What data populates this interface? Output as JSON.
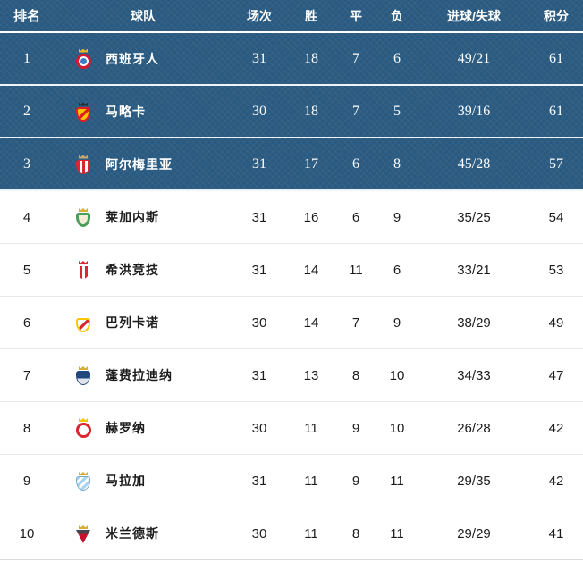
{
  "colors": {
    "highlight_bg": "#2a5a80",
    "divider_dark": "#eef3f7",
    "divider_light": "#e9e9e9",
    "text_dark": "#1c1c1c",
    "text_light": "#ffffff",
    "bottom_rule": "#dcdcdc"
  },
  "table": {
    "headers": {
      "rank": "排名",
      "team": "球队",
      "played": "场次",
      "win": "胜",
      "draw": "平",
      "loss": "负",
      "goals": "进球/失球",
      "points": "积分"
    },
    "rows": [
      {
        "rank": "1",
        "team": "西班牙人",
        "played": "31",
        "win": "18",
        "draw": "7",
        "loss": "6",
        "goals": "49/21",
        "points": "61",
        "highlighted": true,
        "crest": {
          "icon": "espanyol-crest-icon",
          "shape": "circle",
          "colors": [
            "#d6192e",
            "#3a7bc8"
          ],
          "crown": "#f0b429"
        }
      },
      {
        "rank": "2",
        "team": "马略卡",
        "played": "30",
        "win": "18",
        "draw": "7",
        "loss": "5",
        "goals": "39/16",
        "points": "61",
        "highlighted": true,
        "crest": {
          "icon": "mallorca-crest-icon",
          "shape": "diagonal",
          "colors": [
            "#f7c600",
            "#e31b23",
            "#e31b23"
          ],
          "crown": "#2b2b2b"
        }
      },
      {
        "rank": "3",
        "team": "阿尔梅里亚",
        "played": "31",
        "win": "17",
        "draw": "6",
        "loss": "8",
        "goals": "45/28",
        "points": "57",
        "highlighted": true,
        "crest": {
          "icon": "almeria-crest-icon",
          "shape": "stripes",
          "colors": [
            "#d8272f",
            "#ffffff"
          ],
          "crown": "#c9a66b"
        }
      },
      {
        "rank": "4",
        "team": "莱加内斯",
        "played": "31",
        "win": "16",
        "draw": "6",
        "loss": "9",
        "goals": "35/25",
        "points": "54",
        "highlighted": false,
        "crest": {
          "icon": "leganes-crest-icon",
          "shape": "wreath",
          "colors": [
            "#f3edd8",
            "#4a9e5c"
          ],
          "crown": "#d4af37"
        }
      },
      {
        "rank": "5",
        "team": "希洪竞技",
        "played": "31",
        "win": "14",
        "draw": "11",
        "loss": "6",
        "goals": "33/21",
        "points": "53",
        "highlighted": false,
        "crest": {
          "icon": "sporting-gijon-crest-icon",
          "shape": "stripes",
          "colors": [
            "#ffffff",
            "#d8272f"
          ],
          "crown": "#d8272f"
        }
      },
      {
        "rank": "6",
        "team": "巴列卡诺",
        "played": "30",
        "win": "14",
        "draw": "7",
        "loss": "9",
        "goals": "38/29",
        "points": "49",
        "highlighted": false,
        "crest": {
          "icon": "rayo-vallecano-crest-icon",
          "shape": "diagonal",
          "colors": [
            "#ffffff",
            "#d8272f",
            "#f7c600"
          ],
          "crown": null
        }
      },
      {
        "rank": "7",
        "team": "蓬费拉迪纳",
        "played": "31",
        "win": "13",
        "draw": "8",
        "loss": "10",
        "goals": "34/33",
        "points": "47",
        "highlighted": false,
        "crest": {
          "icon": "ponferradina-crest-icon",
          "shape": "split",
          "colors": [
            "#23467c",
            "#dfe4ec"
          ],
          "crown": "#d4af37"
        }
      },
      {
        "rank": "8",
        "team": "赫罗纳",
        "played": "30",
        "win": "11",
        "draw": "9",
        "loss": "10",
        "goals": "26/28",
        "points": "42",
        "highlighted": false,
        "crest": {
          "icon": "girona-crest-icon",
          "shape": "circle",
          "colors": [
            "#d8272f",
            "#ffffff"
          ],
          "crown": "#f7c600"
        }
      },
      {
        "rank": "9",
        "team": "马拉加",
        "played": "31",
        "win": "11",
        "draw": "9",
        "loss": "11",
        "goals": "29/35",
        "points": "42",
        "highlighted": false,
        "crest": {
          "icon": "malaga-crest-icon",
          "shape": "stripes-diag",
          "colors": [
            "#a8d4f0",
            "#ffffff"
          ],
          "crown": "#d4af37"
        }
      },
      {
        "rank": "10",
        "team": "米兰德斯",
        "played": "30",
        "win": "11",
        "draw": "8",
        "loss": "11",
        "goals": "29/29",
        "points": "41",
        "highlighted": false,
        "crest": {
          "icon": "mirandes-crest-icon",
          "shape": "triangle",
          "colors": [
            "#44454f",
            "#c8102e"
          ],
          "crown": "#d4af37"
        }
      }
    ]
  }
}
